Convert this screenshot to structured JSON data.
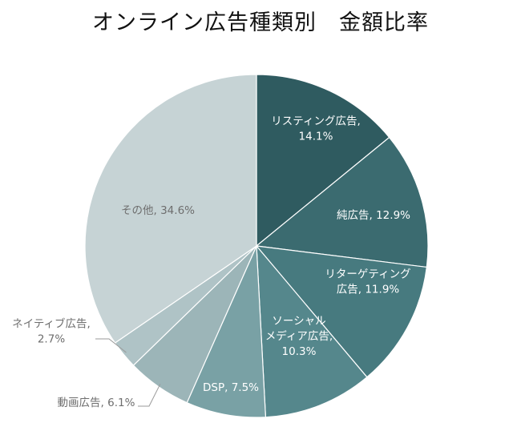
{
  "chart_data": {
    "type": "pie",
    "title": "オンライン広告種類別　金額比率",
    "slices": [
      {
        "label": "リスティング広告",
        "value": 14.1,
        "value_label": "14.1%",
        "color": "#2f5b60"
      },
      {
        "label": "純広告",
        "value": 12.9,
        "value_label": "12.9%",
        "color": "#3b6b70"
      },
      {
        "label": "リターゲティング広告",
        "value": 11.9,
        "value_label": "11.9%",
        "color": "#477a7f"
      },
      {
        "label": "ソーシャルメディア広告",
        "value": 10.3,
        "value_label": "10.3%",
        "color": "#55878c"
      },
      {
        "label": "DSP",
        "value": 7.5,
        "value_label": "7.5%",
        "color": "#79a1a5"
      },
      {
        "label": "動画広告",
        "value": 6.1,
        "value_label": "6.1%",
        "color": "#9cb5b8"
      },
      {
        "label": "ネイティブ広告",
        "value": 2.7,
        "value_label": "2.7%",
        "color": "#afc3c6"
      },
      {
        "label": "その他",
        "value": 34.6,
        "value_label": "34.6%",
        "color": "#c6d3d5"
      }
    ],
    "label_texts": [
      [
        "リスティング広告,",
        "14.1%"
      ],
      [
        "純広告, 12.9%"
      ],
      [
        "リターゲティング",
        "広告, 11.9%"
      ],
      [
        "ソーシャル",
        "メディア広告,",
        "10.3%"
      ],
      [
        "DSP, 7.5%"
      ],
      [
        "動画広告, 6.1%"
      ],
      [
        "ネイティブ広告,",
        "2.7%"
      ],
      [
        "その他, 34.6%"
      ]
    ]
  }
}
